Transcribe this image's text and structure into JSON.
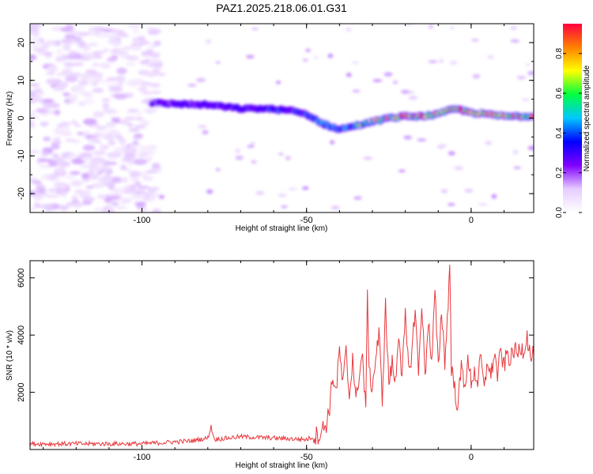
{
  "figure": {
    "title": "PAZ1.2025.218.06.01.G31"
  },
  "colorbar": {
    "label": "Normalized spectral amplitude",
    "range": [
      0.0,
      0.95
    ],
    "ticks": [
      0.0,
      0.2,
      0.4,
      0.6,
      0.8
    ],
    "tick_labels": [
      "0.0",
      "0.2",
      "0.4",
      "0.6",
      "0.8"
    ],
    "colormap": [
      "#ffffff",
      "#e6ccff",
      "#8000ff",
      "#0000ff",
      "#00c8ff",
      "#00ff40",
      "#ffff00",
      "#ff8000",
      "#ff0040"
    ]
  },
  "chart_data": [
    {
      "type": "heatmap",
      "title": "PAZ1.2025.218.06.01.G31",
      "xlabel": "Height of straight line (km)",
      "ylabel": "Frequency (Hz)",
      "xlim": [
        -134,
        19
      ],
      "ylim": [
        -25,
        25
      ],
      "x_ticks": [
        -100,
        -50,
        0
      ],
      "x_tick_labels": [
        "-100",
        "-50",
        "0"
      ],
      "y_ticks": [
        -20,
        -10,
        0,
        10,
        20
      ],
      "y_tick_labels": [
        "-20",
        "-10",
        "0",
        "10",
        "20"
      ],
      "ridge": {
        "x": [
          -97,
          -90,
          -80,
          -70,
          -62,
          -55,
          -50,
          -45,
          -40,
          -35,
          -30,
          -25,
          -20,
          -15,
          -10,
          -5,
          0,
          5,
          10,
          15,
          19
        ],
        "frequency": [
          4,
          3.8,
          3.5,
          2.5,
          2.5,
          2,
          1,
          -1.5,
          -3,
          -2,
          -1,
          0,
          0.5,
          0.5,
          1,
          2.5,
          1.5,
          1,
          0.5,
          0.5,
          0.5
        ],
        "amplitude": [
          0.25,
          0.3,
          0.32,
          0.35,
          0.4,
          0.38,
          0.4,
          0.45,
          0.55,
          0.6,
          0.7,
          0.75,
          0.85,
          0.8,
          0.8,
          0.9,
          0.75,
          0.85,
          0.9,
          0.85,
          0.8
        ]
      },
      "noise_region_x": [
        -134,
        -95
      ],
      "noise_amplitude": [
        0.05,
        0.2
      ]
    },
    {
      "type": "line",
      "xlabel": "Height of straight line (km)",
      "ylabel": "SNR (10 * v/v)",
      "xlim": [
        -134,
        19
      ],
      "ylim": [
        0,
        6600
      ],
      "x_ticks": [
        -100,
        -50,
        0
      ],
      "x_tick_labels": [
        "-100",
        "-50",
        "0"
      ],
      "y_ticks": [
        2000,
        4000,
        6000
      ],
      "y_tick_labels": [
        "2000",
        "4000",
        "6000"
      ],
      "series": [
        {
          "color": "#e8383d",
          "x": [
            -134,
            -120,
            -100,
            -85,
            -80,
            -79,
            -78,
            -70,
            -60,
            -50,
            -46,
            -44,
            -43,
            -42,
            -41,
            -40,
            -39,
            -38,
            -37,
            -36,
            -35,
            -34,
            -33,
            -32,
            -31.5,
            -31,
            -30,
            -29,
            -28,
            -27,
            -26,
            -25,
            -24,
            -23,
            -22,
            -21,
            -20,
            -19,
            -18,
            -17,
            -16,
            -15,
            -14,
            -13,
            -12,
            -11,
            -10,
            -9,
            -8,
            -7,
            -6.5,
            -6,
            -5,
            -4,
            -3,
            -2,
            -1,
            0,
            1,
            2,
            3,
            4,
            5,
            6,
            7,
            8,
            9,
            10,
            11,
            12,
            13,
            14,
            15,
            16,
            17,
            18,
            19
          ],
          "y": [
            200,
            200,
            200,
            300,
            400,
            800,
            350,
            450,
            400,
            350,
            550,
            900,
            1500,
            2600,
            2000,
            3500,
            2200,
            3400,
            1800,
            3300,
            1600,
            2700,
            3300,
            1200,
            5800,
            2600,
            2200,
            3200,
            4000,
            1800,
            5000,
            2300,
            3000,
            2300,
            4200,
            2500,
            4600,
            2700,
            3400,
            5000,
            2600,
            5200,
            2500,
            4600,
            2900,
            5500,
            2800,
            4900,
            3100,
            5000,
            6600,
            2900,
            2100,
            1500,
            2900,
            2300,
            3000,
            2400,
            2700,
            2400,
            3200,
            2000,
            3200,
            2500,
            3400,
            2600,
            3400,
            2900,
            3400,
            3100,
            3500,
            3300,
            3600,
            3500,
            4000,
            3200,
            3300
          ]
        }
      ]
    }
  ]
}
